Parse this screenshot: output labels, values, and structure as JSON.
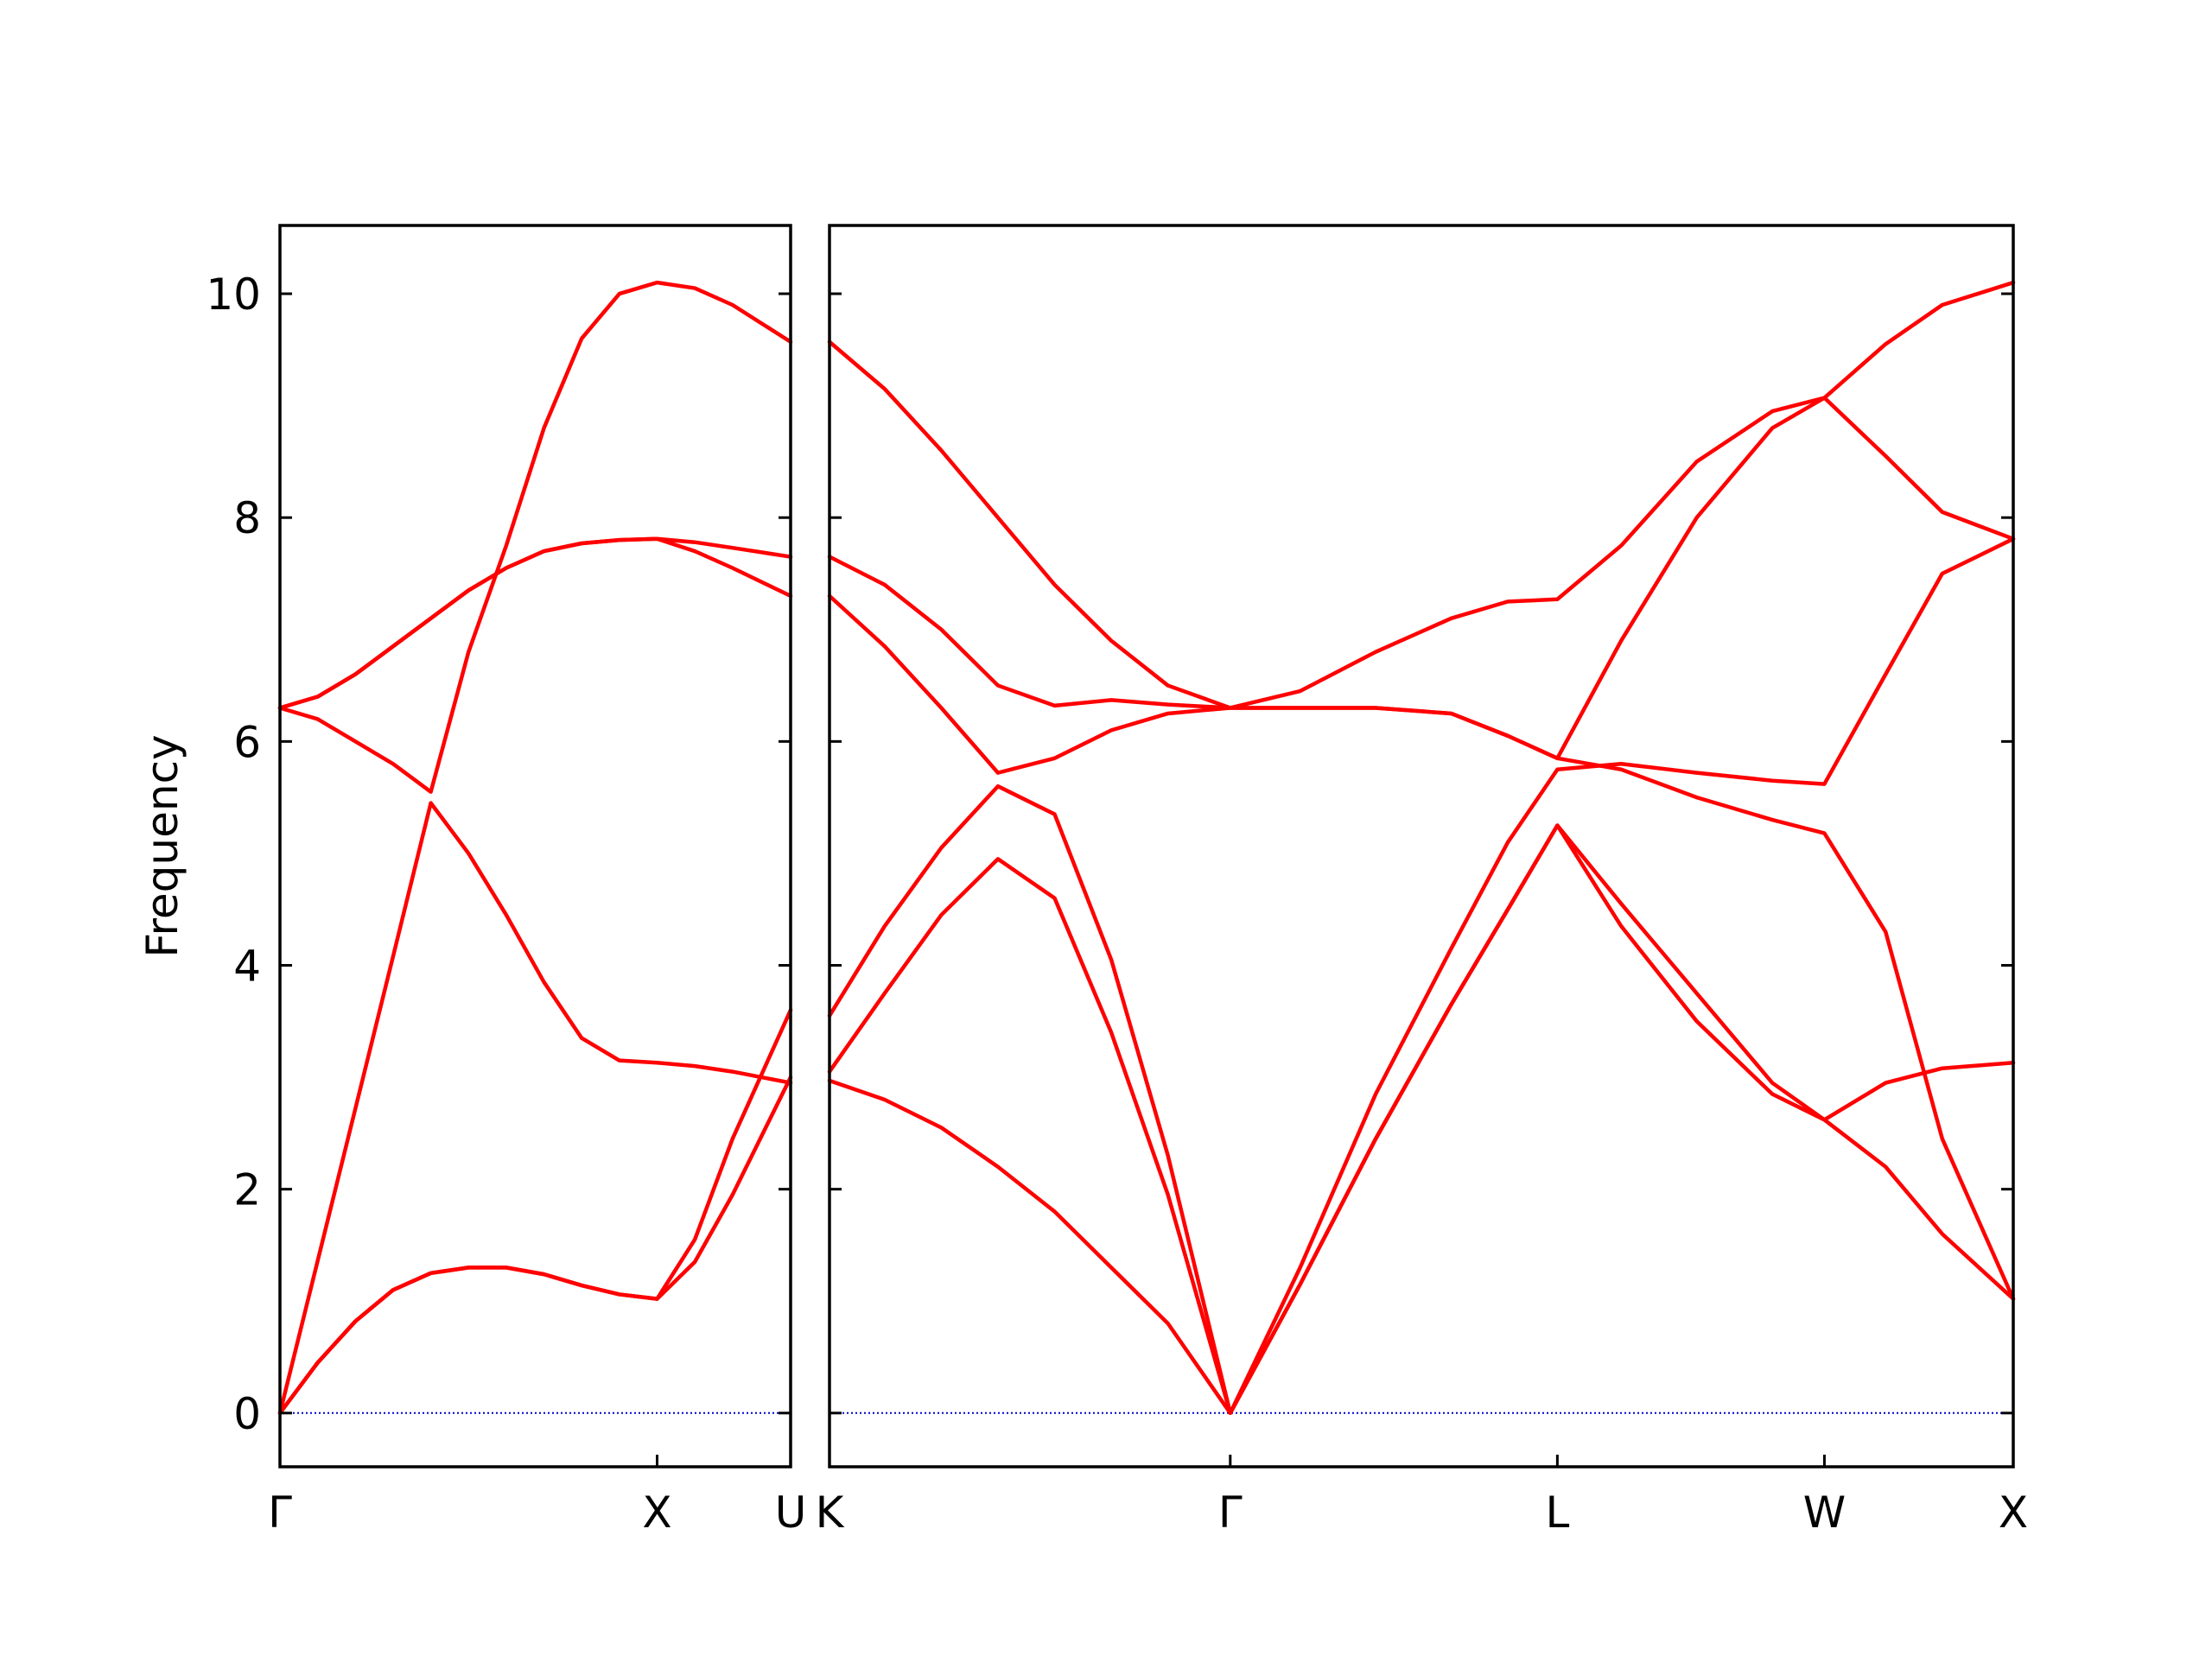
{
  "chart_data": [
    {
      "type": "line",
      "ylabel": "Frequency",
      "x": [
        0,
        0.1,
        0.2,
        0.3,
        0.4,
        0.5,
        0.6,
        0.7,
        0.8,
        0.9,
        1.0,
        1.1,
        1.2,
        1.354
      ],
      "series": [
        {
          "color": "#ff0000",
          "values": [
            0,
            0.45,
            0.82,
            1.1,
            1.25,
            1.3,
            1.3,
            1.24,
            1.14,
            1.06,
            1.02,
            1.35,
            1.95,
            3.0
          ]
        },
        {
          "color": "#ff0000",
          "values": [
            0,
            0.45,
            0.82,
            1.1,
            1.25,
            1.3,
            1.3,
            1.24,
            1.14,
            1.06,
            1.02,
            1.55,
            2.45,
            3.6
          ]
        },
        {
          "color": "#ff0000",
          "values": [
            0,
            1.36,
            2.72,
            4.08,
            5.45,
            5.0,
            4.45,
            3.85,
            3.35,
            3.15,
            3.13,
            3.1,
            3.05,
            2.95
          ]
        },
        {
          "color": "#ff0000",
          "values": [
            6.3,
            6.2,
            6.0,
            5.8,
            5.55,
            6.8,
            7.75,
            8.8,
            9.6,
            10.0,
            10.1,
            10.05,
            9.9,
            9.57
          ]
        },
        {
          "color": "#ff0000",
          "values": [
            6.3,
            6.4,
            6.6,
            6.85,
            7.1,
            7.35,
            7.55,
            7.7,
            7.77,
            7.8,
            7.81,
            7.78,
            7.73,
            7.65
          ]
        },
        {
          "color": "#ff0000",
          "values": [
            6.3,
            6.4,
            6.6,
            6.85,
            7.1,
            7.35,
            7.55,
            7.7,
            7.77,
            7.8,
            7.81,
            7.7,
            7.55,
            7.3
          ]
        }
      ],
      "xlim": [
        0,
        1.354
      ],
      "ylim": [
        -0.48,
        10.61
      ],
      "xticks": [
        {
          "value": 0,
          "label": "Γ"
        },
        {
          "value": 1.0,
          "label": "X"
        },
        {
          "value": 1.354,
          "label": "U"
        }
      ],
      "yticks": [
        0,
        2,
        4,
        6,
        8,
        10
      ],
      "ytick_labels": true,
      "zero_line": {
        "value": 0,
        "color": "#0000cc"
      }
    },
    {
      "type": "line",
      "x": [
        1.354,
        1.5,
        1.65,
        1.8,
        1.95,
        2.1,
        2.25,
        2.415,
        2.6,
        2.8,
        3.0,
        3.15,
        3.281,
        3.45,
        3.65,
        3.85,
        3.988,
        4.15,
        4.3,
        4.488
      ],
      "series": [
        {
          "color": "#ff0000",
          "values": [
            2.97,
            2.8,
            2.55,
            2.2,
            1.8,
            1.3,
            0.8,
            0,
            1.15,
            2.45,
            3.65,
            4.5,
            5.25,
            4.35,
            3.5,
            2.85,
            2.62,
            2.2,
            1.6,
            1.02
          ]
        },
        {
          "color": "#ff0000",
          "values": [
            3.05,
            3.75,
            4.45,
            4.95,
            4.6,
            3.4,
            1.95,
            0,
            1.15,
            2.45,
            3.65,
            4.5,
            5.25,
            4.55,
            3.75,
            2.95,
            2.62,
            2.95,
            3.08,
            3.13
          ]
        },
        {
          "color": "#ff0000",
          "values": [
            3.55,
            4.35,
            5.05,
            5.6,
            5.35,
            4.05,
            2.3,
            0,
            1.3,
            2.85,
            4.15,
            5.1,
            5.75,
            5.8,
            5.72,
            5.65,
            5.62,
            6.6,
            7.5,
            7.81
          ]
        },
        {
          "color": "#ff0000",
          "values": [
            7.3,
            6.85,
            6.3,
            5.72,
            5.85,
            6.1,
            6.25,
            6.3,
            6.3,
            6.3,
            6.25,
            6.05,
            5.85,
            5.75,
            5.5,
            5.3,
            5.18,
            4.3,
            2.45,
            1.02
          ]
        },
        {
          "color": "#ff0000",
          "values": [
            7.65,
            7.4,
            7.0,
            6.5,
            6.32,
            6.37,
            6.33,
            6.3,
            6.3,
            6.3,
            6.25,
            6.05,
            5.85,
            6.9,
            8.0,
            8.8,
            9.07,
            8.55,
            8.05,
            7.81
          ]
        },
        {
          "color": "#ff0000",
          "values": [
            9.57,
            9.15,
            8.6,
            8.0,
            7.4,
            6.9,
            6.5,
            6.3,
            6.45,
            6.8,
            7.1,
            7.25,
            7.27,
            7.75,
            8.5,
            8.95,
            9.07,
            9.55,
            9.9,
            10.1
          ]
        }
      ],
      "xlim": [
        1.354,
        4.488
      ],
      "ylim": [
        -0.48,
        10.61
      ],
      "xticks": [
        {
          "value": 1.354,
          "label": "K"
        },
        {
          "value": 2.415,
          "label": "Γ"
        },
        {
          "value": 3.281,
          "label": "L"
        },
        {
          "value": 3.988,
          "label": "W"
        },
        {
          "value": 4.488,
          "label": "X"
        }
      ],
      "yticks": [
        0,
        2,
        4,
        6,
        8,
        10
      ],
      "ytick_labels": false,
      "zero_line": {
        "value": 0,
        "color": "#0000cc"
      }
    }
  ]
}
